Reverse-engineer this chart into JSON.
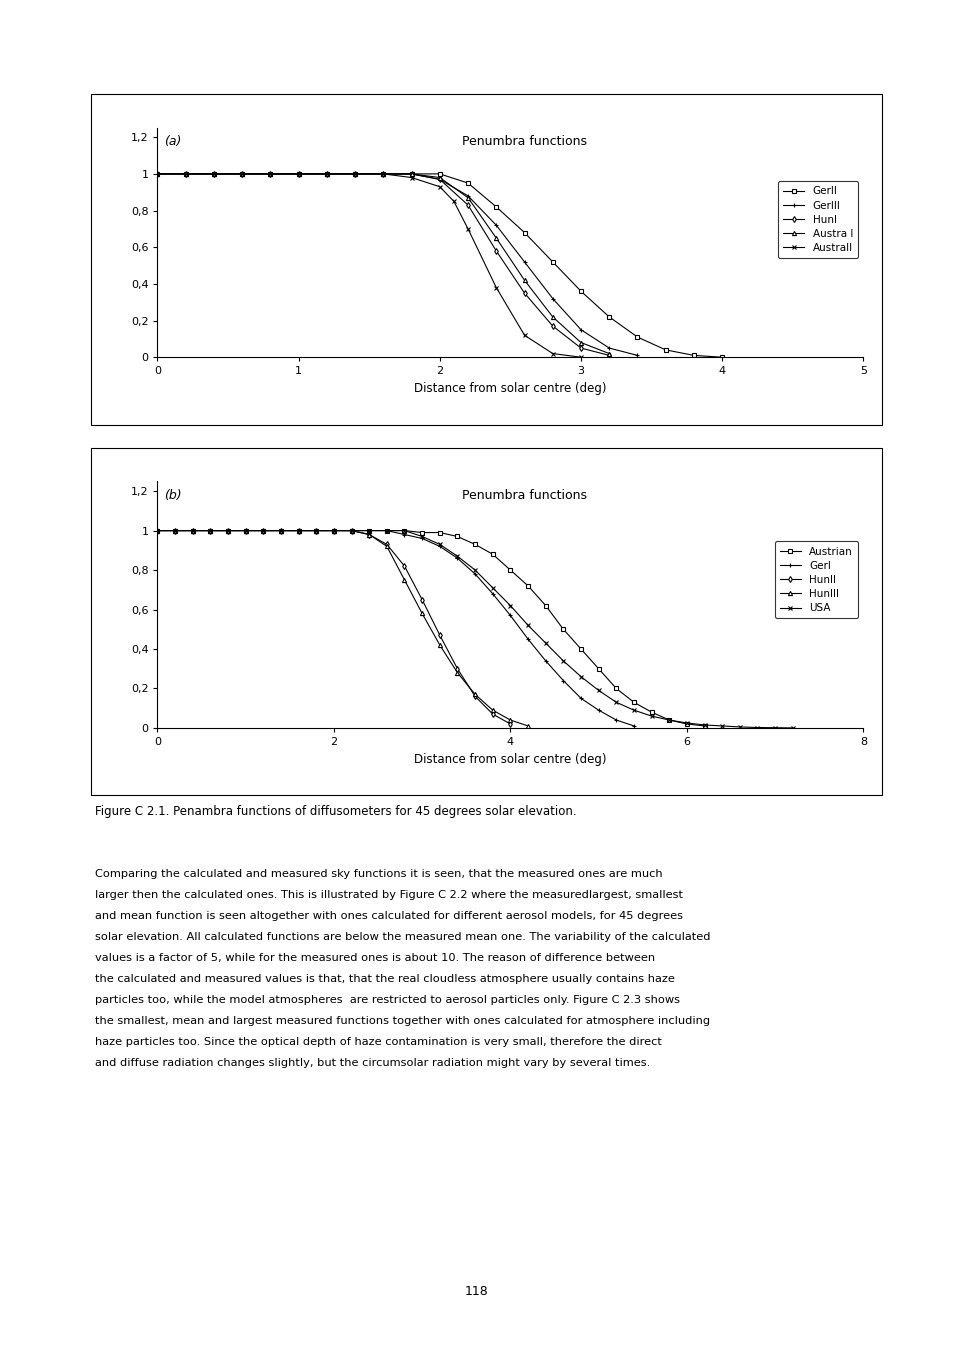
{
  "chart_a": {
    "title": "Penumbra functions",
    "label": "(a)",
    "xlim": [
      0,
      5
    ],
    "ylim": [
      0,
      1.25
    ],
    "xticks": [
      0,
      1,
      2,
      3,
      4,
      5
    ],
    "yticks": [
      0,
      0.2,
      0.4,
      0.6,
      0.8,
      1
    ],
    "ytick_labels": [
      "0",
      "0,2",
      "0,4",
      "0,6",
      "0,8",
      "1"
    ],
    "extra_ytick": {
      "val": 1.2,
      "label": "1,2"
    },
    "xlabel": "Distance from solar centre (deg)",
    "series": [
      {
        "name": "GerII",
        "marker": "s",
        "x": [
          0,
          0.2,
          0.4,
          0.6,
          0.8,
          1.0,
          1.2,
          1.4,
          1.6,
          1.8,
          2.0,
          2.2,
          2.4,
          2.6,
          2.8,
          3.0,
          3.2,
          3.4,
          3.6,
          3.8,
          4.0
        ],
        "y": [
          1.0,
          1.0,
          1.0,
          1.0,
          1.0,
          1.0,
          1.0,
          1.0,
          1.0,
          1.0,
          1.0,
          0.95,
          0.82,
          0.68,
          0.52,
          0.36,
          0.22,
          0.11,
          0.04,
          0.01,
          0.0
        ]
      },
      {
        "name": "GerIII",
        "marker": "+",
        "x": [
          0,
          0.2,
          0.4,
          0.6,
          0.8,
          1.0,
          1.2,
          1.4,
          1.6,
          1.8,
          2.0,
          2.2,
          2.4,
          2.6,
          2.8,
          3.0,
          3.2,
          3.4
        ],
        "y": [
          1.0,
          1.0,
          1.0,
          1.0,
          1.0,
          1.0,
          1.0,
          1.0,
          1.0,
          1.0,
          0.97,
          0.88,
          0.72,
          0.52,
          0.32,
          0.15,
          0.05,
          0.01
        ]
      },
      {
        "name": "HunI",
        "marker": "D",
        "x": [
          0,
          0.2,
          0.4,
          0.6,
          0.8,
          1.0,
          1.2,
          1.4,
          1.6,
          1.8,
          2.0,
          2.2,
          2.4,
          2.6,
          2.8,
          3.0,
          3.2
        ],
        "y": [
          1.0,
          1.0,
          1.0,
          1.0,
          1.0,
          1.0,
          1.0,
          1.0,
          1.0,
          1.0,
          0.97,
          0.83,
          0.58,
          0.35,
          0.17,
          0.05,
          0.01
        ]
      },
      {
        "name": "Austra I",
        "marker": "^",
        "x": [
          0,
          0.2,
          0.4,
          0.6,
          0.8,
          1.0,
          1.2,
          1.4,
          1.6,
          1.8,
          2.0,
          2.2,
          2.4,
          2.6,
          2.8,
          3.0,
          3.2
        ],
        "y": [
          1.0,
          1.0,
          1.0,
          1.0,
          1.0,
          1.0,
          1.0,
          1.0,
          1.0,
          1.0,
          0.98,
          0.87,
          0.65,
          0.42,
          0.22,
          0.08,
          0.02
        ]
      },
      {
        "name": "AustraII",
        "marker": "x",
        "x": [
          0,
          0.2,
          0.4,
          0.6,
          0.8,
          1.0,
          1.2,
          1.4,
          1.6,
          1.8,
          2.0,
          2.1,
          2.2,
          2.4,
          2.6,
          2.8,
          3.0
        ],
        "y": [
          1.0,
          1.0,
          1.0,
          1.0,
          1.0,
          1.0,
          1.0,
          1.0,
          1.0,
          0.98,
          0.93,
          0.85,
          0.7,
          0.38,
          0.12,
          0.02,
          0.0
        ]
      }
    ]
  },
  "chart_b": {
    "title": "Penumbra functions",
    "label": "(b)",
    "xlim": [
      0,
      8
    ],
    "ylim": [
      0,
      1.25
    ],
    "xticks": [
      0,
      2,
      4,
      6,
      8
    ],
    "yticks": [
      0,
      0.2,
      0.4,
      0.6,
      0.8,
      1
    ],
    "ytick_labels": [
      "0",
      "0,2",
      "0,4",
      "0,6",
      "0,8",
      "1"
    ],
    "extra_ytick": {
      "val": 1.2,
      "label": "1,2"
    },
    "xlabel": "Distance from solar centre (deg)",
    "series": [
      {
        "name": "Austrian",
        "marker": "s",
        "x": [
          0,
          0.2,
          0.4,
          0.6,
          0.8,
          1.0,
          1.2,
          1.4,
          1.6,
          1.8,
          2.0,
          2.2,
          2.4,
          2.6,
          2.8,
          3.0,
          3.2,
          3.4,
          3.6,
          3.8,
          4.0,
          4.2,
          4.4,
          4.6,
          4.8,
          5.0,
          5.2,
          5.4,
          5.6,
          5.8,
          6.0,
          6.2
        ],
        "y": [
          1.0,
          1.0,
          1.0,
          1.0,
          1.0,
          1.0,
          1.0,
          1.0,
          1.0,
          1.0,
          1.0,
          1.0,
          1.0,
          1.0,
          1.0,
          0.99,
          0.99,
          0.97,
          0.93,
          0.88,
          0.8,
          0.72,
          0.62,
          0.5,
          0.4,
          0.3,
          0.2,
          0.13,
          0.08,
          0.04,
          0.02,
          0.01
        ]
      },
      {
        "name": "GerI",
        "marker": "+",
        "x": [
          0,
          0.2,
          0.4,
          0.6,
          0.8,
          1.0,
          1.2,
          1.4,
          1.6,
          1.8,
          2.0,
          2.2,
          2.4,
          2.6,
          2.8,
          3.0,
          3.2,
          3.4,
          3.6,
          3.8,
          4.0,
          4.2,
          4.4,
          4.6,
          4.8,
          5.0,
          5.2,
          5.4
        ],
        "y": [
          1.0,
          1.0,
          1.0,
          1.0,
          1.0,
          1.0,
          1.0,
          1.0,
          1.0,
          1.0,
          1.0,
          1.0,
          1.0,
          1.0,
          0.98,
          0.96,
          0.92,
          0.86,
          0.78,
          0.68,
          0.57,
          0.45,
          0.34,
          0.24,
          0.15,
          0.09,
          0.04,
          0.01
        ]
      },
      {
        "name": "HunII",
        "marker": "D",
        "x": [
          0,
          0.2,
          0.4,
          0.6,
          0.8,
          1.0,
          1.2,
          1.4,
          1.6,
          1.8,
          2.0,
          2.2,
          2.4,
          2.6,
          2.8,
          3.0,
          3.2,
          3.4,
          3.6,
          3.8,
          4.0
        ],
        "y": [
          1.0,
          1.0,
          1.0,
          1.0,
          1.0,
          1.0,
          1.0,
          1.0,
          1.0,
          1.0,
          1.0,
          1.0,
          0.98,
          0.93,
          0.82,
          0.65,
          0.47,
          0.3,
          0.16,
          0.07,
          0.02
        ]
      },
      {
        "name": "HunIII",
        "marker": "^",
        "x": [
          0,
          0.2,
          0.4,
          0.6,
          0.8,
          1.0,
          1.2,
          1.4,
          1.6,
          1.8,
          2.0,
          2.2,
          2.4,
          2.6,
          2.8,
          3.0,
          3.2,
          3.4,
          3.6,
          3.8,
          4.0,
          4.2
        ],
        "y": [
          1.0,
          1.0,
          1.0,
          1.0,
          1.0,
          1.0,
          1.0,
          1.0,
          1.0,
          1.0,
          1.0,
          1.0,
          0.98,
          0.92,
          0.75,
          0.58,
          0.42,
          0.28,
          0.17,
          0.09,
          0.04,
          0.01
        ]
      },
      {
        "name": "USA",
        "marker": "x",
        "x": [
          0,
          0.2,
          0.4,
          0.6,
          0.8,
          1.0,
          1.2,
          1.4,
          1.6,
          1.8,
          2.0,
          2.2,
          2.4,
          2.6,
          2.8,
          3.0,
          3.2,
          3.4,
          3.6,
          3.8,
          4.0,
          4.2,
          4.4,
          4.6,
          4.8,
          5.0,
          5.2,
          5.4,
          5.6,
          5.8,
          6.0,
          6.2,
          6.4,
          6.6,
          6.8,
          7.0,
          7.2
        ],
        "y": [
          1.0,
          1.0,
          1.0,
          1.0,
          1.0,
          1.0,
          1.0,
          1.0,
          1.0,
          1.0,
          1.0,
          1.0,
          1.0,
          1.0,
          1.0,
          0.97,
          0.93,
          0.87,
          0.8,
          0.71,
          0.62,
          0.52,
          0.43,
          0.34,
          0.26,
          0.19,
          0.13,
          0.09,
          0.06,
          0.04,
          0.025,
          0.015,
          0.01,
          0.005,
          0.002,
          0.001,
          0.0
        ]
      }
    ]
  },
  "caption": "Figure C 2.1. Penambra functions of diffusometers for 45 degrees solar elevation.",
  "body_text": [
    "Comparing the calculated and measured sky functions it is seen, that the measured ones are much",
    "larger then the calculated ones. This is illustrated by Figure C 2.2 where the measuredlargest, smallest",
    "and mean function is seen altogether with ones calculated for different aerosol models, for 45 degrees",
    "solar elevation. All calculated functions are below the measured mean one. The variability of the calculated",
    "values is a factor of 5, while for the measured ones is about 10. The reason of difference between",
    "the calculated and measured values is that, that the real cloudless atmosphere usually contains haze",
    "particles too, while the model atmospheres  are restricted to aerosol particles only. Figure C 2.3 shows",
    "the smallest, mean and largest measured functions together with ones calculated for atmosphere including",
    "haze particles too. Since the optical depth of haze contamination is very small, therefore the direct",
    "and diffuse radiation changes slightly, but the circumsolar radiation might vary by several times."
  ],
  "page_number": "118",
  "bg_color": "#ffffff",
  "line_color": "#000000",
  "marker_size": 3,
  "linewidth": 0.8
}
